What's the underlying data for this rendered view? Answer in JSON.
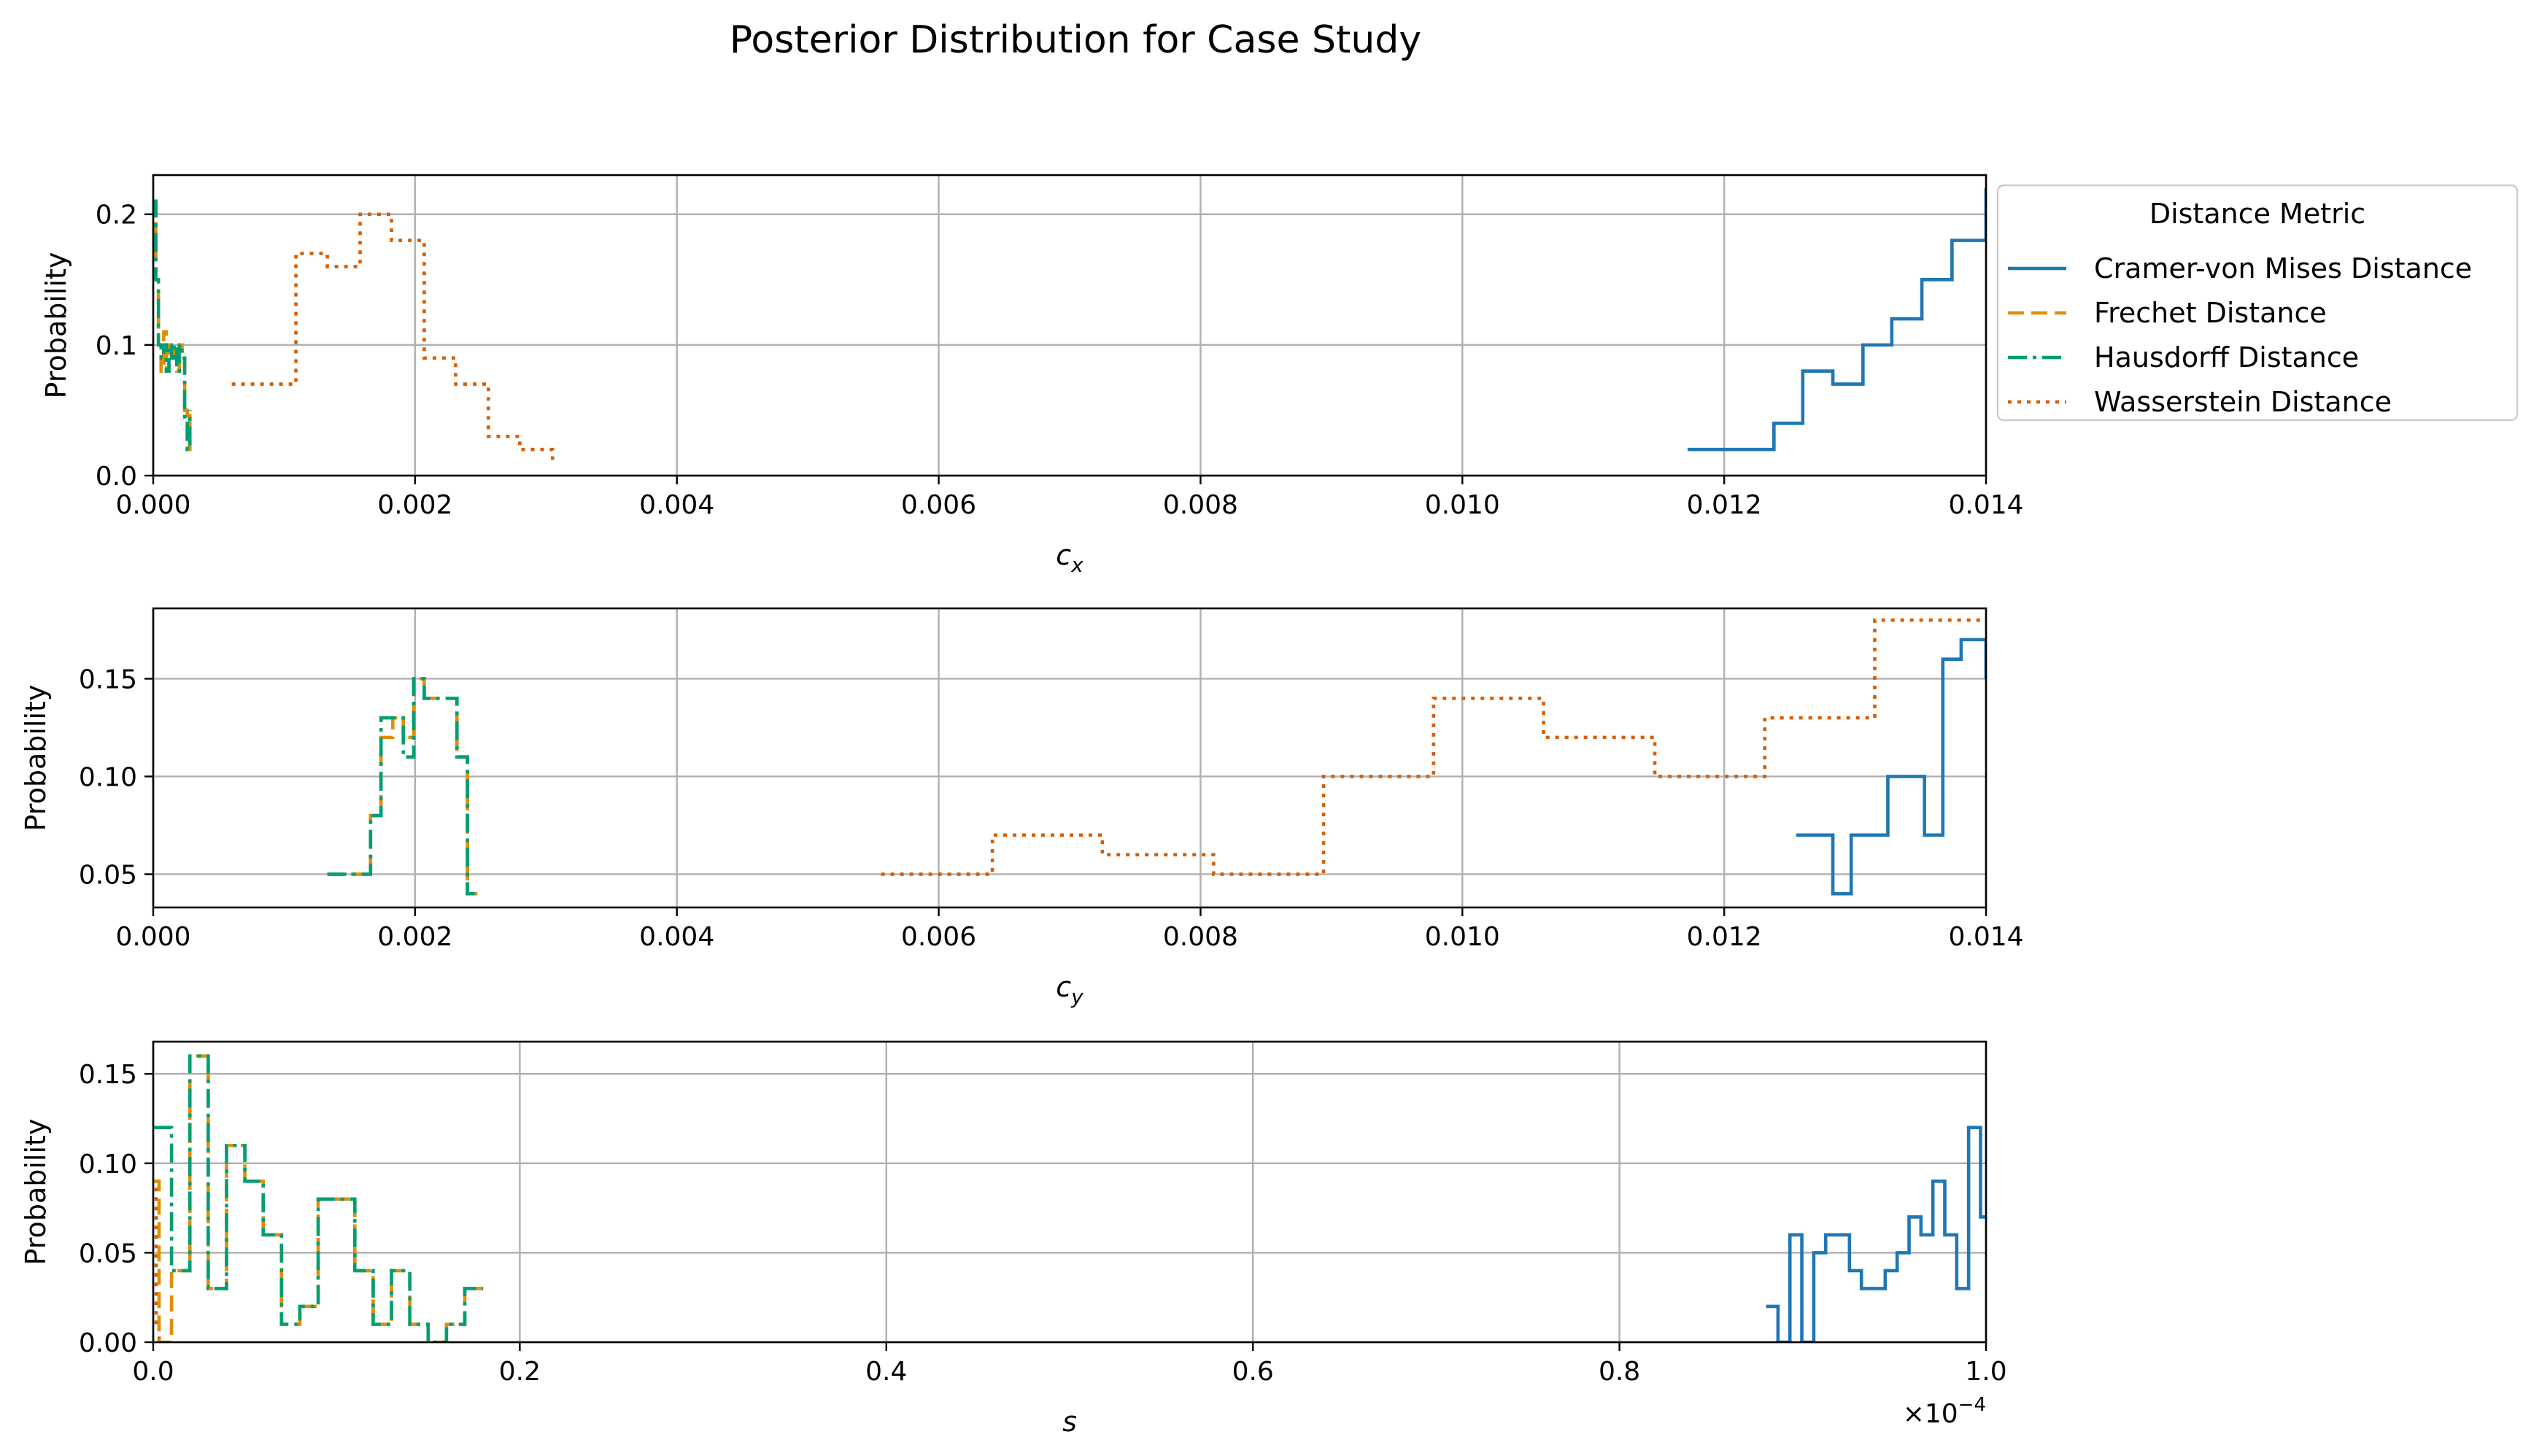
{
  "figure": {
    "title": "Posterior Distribution for Case Study",
    "legend": {
      "title": "Distance Metric",
      "placement": "outside-right-top",
      "entries": [
        {
          "name": "Cramer-von Mises Distance",
          "color": "#1f77b4",
          "style": "solid"
        },
        {
          "name": "Frechet Distance",
          "color": "#de8f05",
          "style": "dashed"
        },
        {
          "name": "Hausdorff Distance",
          "color": "#029e73",
          "style": "dashdot"
        },
        {
          "name": "Wasserstein Distance",
          "color": "#d55e00",
          "style": "dotted"
        }
      ]
    }
  },
  "chart_data": [
    {
      "type": "line",
      "xlabel_main": "c",
      "xlabel_sub": "x",
      "ylabel": "Probability",
      "xlim": [
        0,
        0.014
      ],
      "ylim": [
        0,
        0.23
      ],
      "xticks": [
        0,
        0.002,
        0.004,
        0.006,
        0.008,
        0.01,
        0.012,
        0.014
      ],
      "xtick_labels": [
        "0.000",
        "0.002",
        "0.004",
        "0.006",
        "0.008",
        "0.010",
        "0.012",
        "0.014"
      ],
      "yticks": [
        0,
        0.1,
        0.2
      ],
      "ytick_labels": [
        "0.0",
        "0.1",
        "0.2"
      ],
      "grid": true,
      "series": [
        {
          "name": "Cramer-von Mises Distance",
          "x": [
            0.01172,
            0.01215,
            0.01238,
            0.0126,
            0.01283,
            0.01306,
            0.01328,
            0.01351,
            0.01374,
            0.014
          ],
          "y": [
            0.02,
            0.02,
            0.04,
            0.08,
            0.07,
            0.1,
            0.12,
            0.15,
            0.18,
            0.22
          ]
        },
        {
          "name": "Frechet Distance",
          "x": [
            0.0,
            2e-05,
            4e-05,
            6e-05,
            8e-05,
            0.0001,
            0.00012,
            0.00014,
            0.00016,
            0.00018,
            0.0002,
            0.00022,
            0.00024,
            0.00026,
            0.00028
          ],
          "y": [
            0.21,
            0.15,
            0.1,
            0.08,
            0.11,
            0.08,
            0.1,
            0.09,
            0.1,
            0.08,
            0.1,
            0.09,
            0.05,
            0.02,
            0.05
          ]
        },
        {
          "name": "Hausdorff Distance",
          "x": [
            0.0,
            2e-05,
            4e-05,
            6e-05,
            8e-05,
            0.0001,
            0.00012,
            0.00014,
            0.00016,
            0.00018,
            0.0002,
            0.00022,
            0.00024,
            0.00026,
            0.00028
          ],
          "y": [
            0.21,
            0.15,
            0.1,
            0.09,
            0.1,
            0.08,
            0.1,
            0.09,
            0.1,
            0.08,
            0.1,
            0.09,
            0.04,
            0.02,
            0.05
          ]
        },
        {
          "name": "Wasserstein Distance",
          "x": [
            0.0006,
            0.00084,
            0.00109,
            0.00133,
            0.00158,
            0.00182,
            0.00207,
            0.00231,
            0.00256,
            0.0028,
            0.00305
          ],
          "y": [
            0.07,
            0.07,
            0.17,
            0.16,
            0.2,
            0.18,
            0.09,
            0.07,
            0.03,
            0.02,
            0.01
          ]
        }
      ]
    },
    {
      "type": "line",
      "xlabel_main": "c",
      "xlabel_sub": "y",
      "ylabel": "Probability",
      "xlim": [
        0,
        0.014
      ],
      "ylim": [
        0.033,
        0.186
      ],
      "xticks": [
        0,
        0.002,
        0.004,
        0.006,
        0.008,
        0.01,
        0.012,
        0.014
      ],
      "xtick_labels": [
        "0.000",
        "0.002",
        "0.004",
        "0.006",
        "0.008",
        "0.010",
        "0.012",
        "0.014"
      ],
      "yticks": [
        0.05,
        0.1,
        0.15
      ],
      "ytick_labels": [
        "0.05",
        "0.10",
        "0.15"
      ],
      "grid": true,
      "series": [
        {
          "name": "Cramer-von Mises Distance",
          "x": [
            0.01255,
            0.01269,
            0.01283,
            0.01297,
            0.01311,
            0.01325,
            0.01339,
            0.01353,
            0.01367,
            0.01381,
            0.014
          ],
          "y": [
            0.07,
            0.07,
            0.04,
            0.07,
            0.07,
            0.1,
            0.1,
            0.07,
            0.16,
            0.17,
            0.15
          ]
        },
        {
          "name": "Frechet Distance",
          "x": [
            0.00133,
            0.00158,
            0.00166,
            0.00174,
            0.00183,
            0.00191,
            0.00199,
            0.00207,
            0.00215,
            0.00224,
            0.00232,
            0.0024,
            0.00248
          ],
          "y": [
            0.05,
            0.05,
            0.08,
            0.12,
            0.13,
            0.12,
            0.15,
            0.14,
            0.14,
            0.14,
            0.11,
            0.04,
            0.04
          ]
        },
        {
          "name": "Hausdorff Distance",
          "x": [
            0.00133,
            0.00158,
            0.00166,
            0.00174,
            0.00183,
            0.00191,
            0.00199,
            0.00207,
            0.00215,
            0.00224,
            0.00232,
            0.0024,
            0.00248
          ],
          "y": [
            0.05,
            0.05,
            0.08,
            0.13,
            0.13,
            0.11,
            0.15,
            0.14,
            0.14,
            0.14,
            0.11,
            0.04,
            0.04
          ]
        },
        {
          "name": "Wasserstein Distance",
          "x": [
            0.00556,
            0.00641,
            0.00725,
            0.0081,
            0.00894,
            0.00978,
            0.01062,
            0.01147,
            0.01231,
            0.01315,
            0.014
          ],
          "y": [
            0.05,
            0.07,
            0.06,
            0.05,
            0.1,
            0.14,
            0.12,
            0.1,
            0.13,
            0.18,
            0.18
          ]
        }
      ]
    },
    {
      "type": "line",
      "xlabel_main": "s",
      "xlabel_sub": "",
      "ylabel": "Probability",
      "offset_label_main": "×10",
      "offset_label_exp": "−4",
      "xlim": [
        0,
        1.0
      ],
      "ylim": [
        0,
        0.168
      ],
      "xticks": [
        0,
        0.2,
        0.4,
        0.6,
        0.8,
        1.0
      ],
      "xtick_labels": [
        "0.0",
        "0.2",
        "0.4",
        "0.6",
        "0.8",
        "1.0"
      ],
      "yticks": [
        0,
        0.05,
        0.1,
        0.15
      ],
      "ytick_labels": [
        "0.00",
        "0.05",
        "0.10",
        "0.15"
      ],
      "grid": true,
      "series": [
        {
          "name": "Cramer-von Mises Distance",
          "x": [
            0.88,
            0.8865,
            0.893,
            0.8995,
            0.906,
            0.9125,
            0.919,
            0.9255,
            0.932,
            0.9385,
            0.945,
            0.9515,
            0.958,
            0.9645,
            0.971,
            0.9775,
            0.984,
            0.9905,
            0.997,
            1.0
          ],
          "y": [
            0.02,
            0.0,
            0.06,
            0.0,
            0.05,
            0.06,
            0.06,
            0.04,
            0.03,
            0.03,
            0.04,
            0.05,
            0.07,
            0.06,
            0.09,
            0.06,
            0.03,
            0.12,
            0.07,
            0.07
          ]
        },
        {
          "name": "Frechet Distance",
          "x": [
            0.0,
            0.0032,
            0.01,
            0.02,
            0.03,
            0.04,
            0.05,
            0.06,
            0.07,
            0.08,
            0.09,
            0.1,
            0.11,
            0.12,
            0.13,
            0.14,
            0.15,
            0.16,
            0.17,
            0.18
          ],
          "y": [
            0.09,
            0.0,
            0.04,
            0.16,
            0.03,
            0.11,
            0.09,
            0.06,
            0.01,
            0.02,
            0.08,
            0.08,
            0.04,
            0.01,
            0.04,
            0.01,
            0.0,
            0.01,
            0.03,
            0.03
          ]
        },
        {
          "name": "Hausdorff Distance",
          "x": [
            0.0,
            0.01,
            0.02,
            0.03,
            0.04,
            0.05,
            0.06,
            0.07,
            0.08,
            0.09,
            0.1,
            0.11,
            0.12,
            0.13,
            0.14,
            0.15,
            0.16,
            0.17,
            0.18
          ],
          "y": [
            0.12,
            0.04,
            0.16,
            0.03,
            0.11,
            0.09,
            0.06,
            0.01,
            0.02,
            0.08,
            0.08,
            0.04,
            0.01,
            0.04,
            0.01,
            0.0,
            0.01,
            0.03,
            0.03
          ]
        },
        {
          "name": "Wasserstein Distance",
          "x": [
            0.0,
            0.0016,
            0.0032
          ],
          "y": [
            0.09,
            0.01,
            0.0
          ]
        }
      ]
    }
  ]
}
